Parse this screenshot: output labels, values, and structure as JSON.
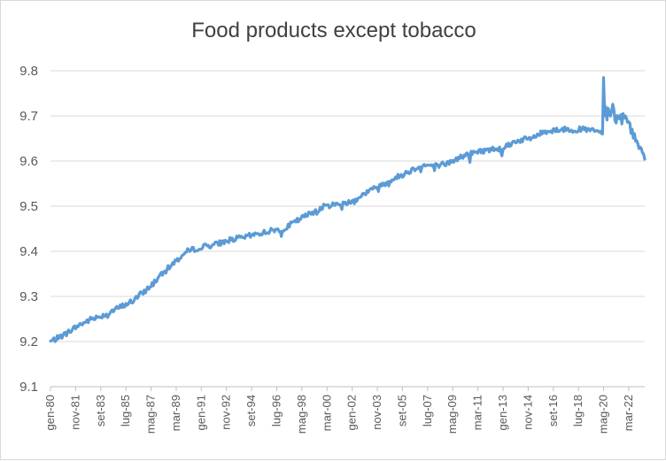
{
  "chart_data": {
    "type": "line",
    "title": "Food products except tobacco",
    "xlabel": "",
    "ylabel": "",
    "ylim": [
      9.1,
      9.8
    ],
    "y_ticks": [
      "9.1",
      "9.2",
      "9.3",
      "9.4",
      "9.5",
      "9.6",
      "9.7",
      "9.8"
    ],
    "x_ticks": [
      "gen-80",
      "nov-81",
      "set-83",
      "lug-85",
      "mag-87",
      "mar-89",
      "gen-91",
      "nov-92",
      "set-94",
      "lug-96",
      "mag-98",
      "mar-00",
      "gen-02",
      "nov-03",
      "set-05",
      "lug-07",
      "mag-09",
      "mar-11",
      "gen-13",
      "nov-14",
      "set-16",
      "lug-18",
      "mag-20",
      "mar-22"
    ],
    "xlim": [
      "1980-01",
      "2023-05"
    ],
    "grid": true,
    "legend": "none",
    "series_color": "#5b9bd5",
    "series": [
      {
        "x": [
          "1980-01",
          "1981-01",
          "1982-01",
          "1983-01",
          "1984-01",
          "1985-01",
          "1986-01",
          "1987-01",
          "1988-01",
          "1989-01",
          "1990-01",
          "1991-01",
          "1992-01",
          "1993-01",
          "1994-01",
          "1995-01",
          "1996-01",
          "1997-01",
          "1998-01",
          "1999-01",
          "2000-01",
          "2001-01",
          "2002-01",
          "2003-01",
          "2004-01",
          "2005-01",
          "2006-01",
          "2007-01",
          "2008-01",
          "2009-01",
          "2010-01",
          "2011-01",
          "2012-01",
          "2013-01",
          "2014-01",
          "2015-01",
          "2016-01",
          "2017-01",
          "2018-01",
          "2019-01",
          "2019-12",
          "2020-04",
          "2020-05",
          "2020-06",
          "2020-07",
          "2020-08",
          "2020-09",
          "2020-11",
          "2021-01",
          "2021-03",
          "2021-06",
          "2021-09",
          "2021-12",
          "2022-03",
          "2022-06",
          "2022-09",
          "2022-12",
          "2023-03",
          "2023-05"
        ],
        "values": [
          9.2,
          9.215,
          9.235,
          9.25,
          9.26,
          9.275,
          9.29,
          9.315,
          9.345,
          9.375,
          9.4,
          9.41,
          9.415,
          9.425,
          9.43,
          9.438,
          9.445,
          9.45,
          9.468,
          9.485,
          9.5,
          9.505,
          9.51,
          9.53,
          9.545,
          9.56,
          9.575,
          9.59,
          9.59,
          9.595,
          9.61,
          9.62,
          9.625,
          9.63,
          9.645,
          9.65,
          9.665,
          9.67,
          9.67,
          9.67,
          9.665,
          9.66,
          9.785,
          9.7,
          9.72,
          9.69,
          9.72,
          9.7,
          9.72,
          9.695,
          9.695,
          9.7,
          9.7,
          9.685,
          9.665,
          9.65,
          9.635,
          9.62,
          9.605
        ]
      }
    ]
  }
}
